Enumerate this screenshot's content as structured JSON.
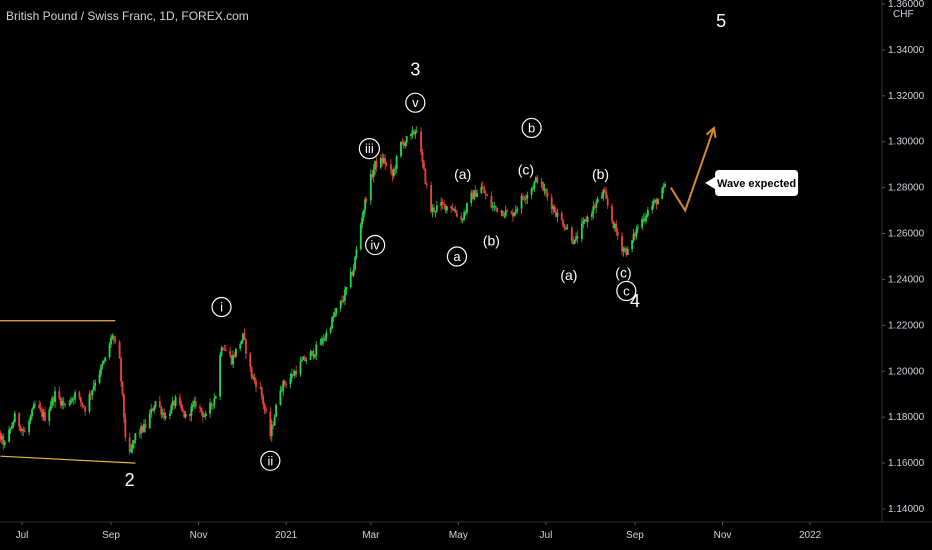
{
  "header": {
    "title": "British Pound / Swiss Franc, 1D, FOREX.com",
    "currency": "CHF"
  },
  "colors": {
    "background": "#000000",
    "up_candle": "#26d94a",
    "down_candle": "#f0413c",
    "channel_lines": "#e8b04b",
    "projection": "#d88a2a",
    "text": "#d1d4dc"
  },
  "chart_data": {
    "type": "candlestick",
    "xlabels": [
      "Jul",
      "Sep",
      "Nov",
      "2021",
      "Mar",
      "May",
      "Jul",
      "Sep",
      "Nov",
      "2022"
    ],
    "ylabels": [
      "1.14000",
      "1.16000",
      "1.18000",
      "1.20000",
      "1.22000",
      "1.24000",
      "1.26000",
      "1.28000",
      "1.30000",
      "1.32000",
      "1.34000",
      "1.36000"
    ],
    "ylim": [
      1.14,
      1.36
    ],
    "price_path": [
      [
        "2020-06-01",
        1.196
      ],
      [
        "2020-06-05",
        1.182
      ],
      [
        "2020-06-12",
        1.175
      ],
      [
        "2020-06-19",
        1.168
      ],
      [
        "2020-06-26",
        1.18
      ],
      [
        "2020-07-03",
        1.173
      ],
      [
        "2020-07-10",
        1.185
      ],
      [
        "2020-07-17",
        1.18
      ],
      [
        "2020-07-24",
        1.19
      ],
      [
        "2020-07-31",
        1.185
      ],
      [
        "2020-08-07",
        1.19
      ],
      [
        "2020-08-14",
        1.184
      ],
      [
        "2020-08-21",
        1.196
      ],
      [
        "2020-08-28",
        1.205
      ],
      [
        "2020-09-02",
        1.216
      ],
      [
        "2020-09-07",
        1.204
      ],
      [
        "2020-09-11",
        1.172
      ],
      [
        "2020-09-14",
        1.163
      ],
      [
        "2020-09-18",
        1.172
      ],
      [
        "2020-09-25",
        1.176
      ],
      [
        "2020-10-02",
        1.187
      ],
      [
        "2020-10-09",
        1.18
      ],
      [
        "2020-10-16",
        1.187
      ],
      [
        "2020-10-23",
        1.18
      ],
      [
        "2020-10-30",
        1.186
      ],
      [
        "2020-11-06",
        1.18
      ],
      [
        "2020-11-13",
        1.19
      ],
      [
        "2020-11-17",
        1.212
      ],
      [
        "2020-11-24",
        1.205
      ],
      [
        "2020-12-02",
        1.215
      ],
      [
        "2020-12-08",
        1.198
      ],
      [
        "2020-12-14",
        1.192
      ],
      [
        "2020-12-21",
        1.172
      ],
      [
        "2020-12-28",
        1.193
      ],
      [
        "2021-01-05",
        1.198
      ],
      [
        "2021-01-12",
        1.204
      ],
      [
        "2021-01-20",
        1.208
      ],
      [
        "2021-01-28",
        1.215
      ],
      [
        "2021-02-04",
        1.225
      ],
      [
        "2021-02-10",
        1.232
      ],
      [
        "2021-02-17",
        1.245
      ],
      [
        "2021-02-23",
        1.268
      ],
      [
        "2021-02-28",
        1.282
      ],
      [
        "2021-03-04",
        1.29
      ],
      [
        "2021-03-10",
        1.292
      ],
      [
        "2021-03-16",
        1.285
      ],
      [
        "2021-03-22",
        1.299
      ],
      [
        "2021-03-29",
        1.302
      ],
      [
        "2021-04-02",
        1.306
      ],
      [
        "2021-04-06",
        1.29
      ],
      [
        "2021-04-12",
        1.27
      ],
      [
        "2021-04-18",
        1.272
      ],
      [
        "2021-04-26",
        1.272
      ],
      [
        "2021-05-03",
        1.266
      ],
      [
        "2021-05-10",
        1.276
      ],
      [
        "2021-05-17",
        1.28
      ],
      [
        "2021-05-24",
        1.272
      ],
      [
        "2021-05-31",
        1.27
      ],
      [
        "2021-06-07",
        1.268
      ],
      [
        "2021-06-14",
        1.275
      ],
      [
        "2021-06-21",
        1.28
      ],
      [
        "2021-06-25",
        1.284
      ],
      [
        "2021-07-02",
        1.276
      ],
      [
        "2021-07-09",
        1.268
      ],
      [
        "2021-07-16",
        1.262
      ],
      [
        "2021-07-21",
        1.256
      ],
      [
        "2021-07-28",
        1.265
      ],
      [
        "2021-08-04",
        1.272
      ],
      [
        "2021-08-10",
        1.278
      ],
      [
        "2021-08-17",
        1.264
      ],
      [
        "2021-08-23",
        1.254
      ],
      [
        "2021-08-27",
        1.252
      ],
      [
        "2021-09-03",
        1.263
      ],
      [
        "2021-09-10",
        1.27
      ],
      [
        "2021-09-17",
        1.275
      ],
      [
        "2021-09-22",
        1.28
      ]
    ],
    "projection": [
      [
        "2021-09-26",
        1.28
      ],
      [
        "2021-10-06",
        1.27
      ],
      [
        "2021-10-26",
        1.306
      ]
    ],
    "channel": [
      [
        [
          "2020-05-28",
          1.222
        ],
        [
          "2020-09-04",
          1.222
        ]
      ],
      [
        [
          "2020-06-16",
          1.163
        ],
        [
          "2020-09-18",
          1.16
        ]
      ]
    ],
    "annotations": [
      {
        "text": "2",
        "circled": false,
        "x": "2020-09-14",
        "y": 1.153
      },
      {
        "text": "i",
        "circled": true,
        "x": "2020-11-17",
        "y": 1.228
      },
      {
        "text": "ii",
        "circled": true,
        "x": "2020-12-21",
        "y": 1.161
      },
      {
        "text": "iii",
        "circled": true,
        "x": "2021-02-28",
        "y": 1.297
      },
      {
        "text": "iv",
        "circled": true,
        "x": "2021-03-04",
        "y": 1.255
      },
      {
        "text": "v",
        "circled": true,
        "x": "2021-04-01",
        "y": 1.317
      },
      {
        "text": "3",
        "circled": false,
        "x": "2021-04-01",
        "y": 1.332
      },
      {
        "text": "(a)",
        "circled": false,
        "x": "2021-05-04",
        "y": 1.286
      },
      {
        "text": "a",
        "circled": true,
        "x": "2021-04-30",
        "y": 1.25
      },
      {
        "text": "(b)",
        "circled": false,
        "x": "2021-05-24",
        "y": 1.257
      },
      {
        "text": "(c)",
        "circled": false,
        "x": "2021-06-17",
        "y": 1.288
      },
      {
        "text": "b",
        "circled": true,
        "x": "2021-06-21",
        "y": 1.306
      },
      {
        "text": "(a)",
        "circled": false,
        "x": "2021-07-17",
        "y": 1.242
      },
      {
        "text": "(b)",
        "circled": false,
        "x": "2021-08-08",
        "y": 1.286
      },
      {
        "text": "(c)",
        "circled": false,
        "x": "2021-08-24",
        "y": 1.243
      },
      {
        "text": "c",
        "circled": true,
        "x": "2021-08-26",
        "y": 1.235
      },
      {
        "text": "4",
        "circled": false,
        "x": "2021-09-01",
        "y": 1.231
      },
      {
        "text": "5",
        "circled": false,
        "x": "2021-10-31",
        "y": 1.353
      }
    ],
    "callout": {
      "text": "Wave expected",
      "x": "2021-10-31",
      "y": 1.282
    }
  }
}
